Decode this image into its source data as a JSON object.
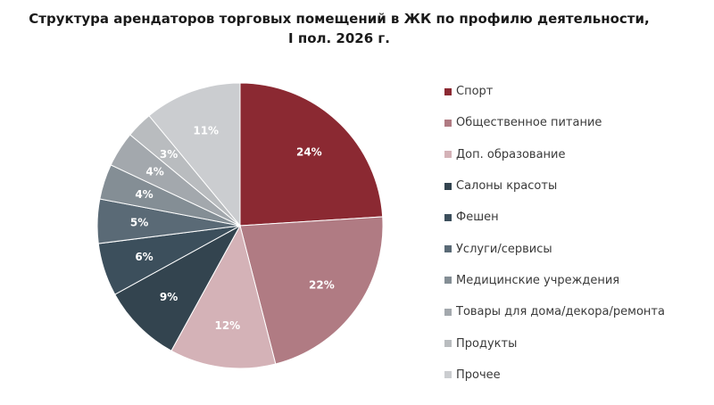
{
  "chart_data": {
    "type": "pie",
    "title_line1": "Структура арендаторов торговых помещений в ЖК по профилю деятельности,",
    "title_line2": "I пол. 2026 г.",
    "legend_position": "right",
    "slices": [
      {
        "label": "Спорт",
        "value": 24,
        "display": "24%",
        "color": "#8B2932"
      },
      {
        "label": "Общественное питание",
        "value": 22,
        "display": "22%",
        "color": "#B07B83"
      },
      {
        "label": "Доп. образование",
        "value": 12,
        "display": "12%",
        "color": "#D4B2B7"
      },
      {
        "label": "Салоны красоты",
        "value": 9,
        "display": "9%",
        "color": "#33444F"
      },
      {
        "label": "Фешен",
        "value": 6,
        "display": "6%",
        "color": "#3C4F5C"
      },
      {
        "label": "Услуги/сервисы",
        "value": 5,
        "display": "5%",
        "color": "#5A6A76"
      },
      {
        "label": "Медицинские учреждения",
        "value": 4,
        "display": "4%",
        "color": "#848E95"
      },
      {
        "label": "Товары для дома/декора/ремонта",
        "value": 4,
        "display": "4%",
        "color": "#A3A8AD"
      },
      {
        "label": "Продукты",
        "value": 3,
        "display": "3%",
        "color": "#B9BCBF"
      },
      {
        "label": "Прочее",
        "value": 11,
        "display": "11%",
        "color": "#CBCDD0"
      }
    ]
  }
}
